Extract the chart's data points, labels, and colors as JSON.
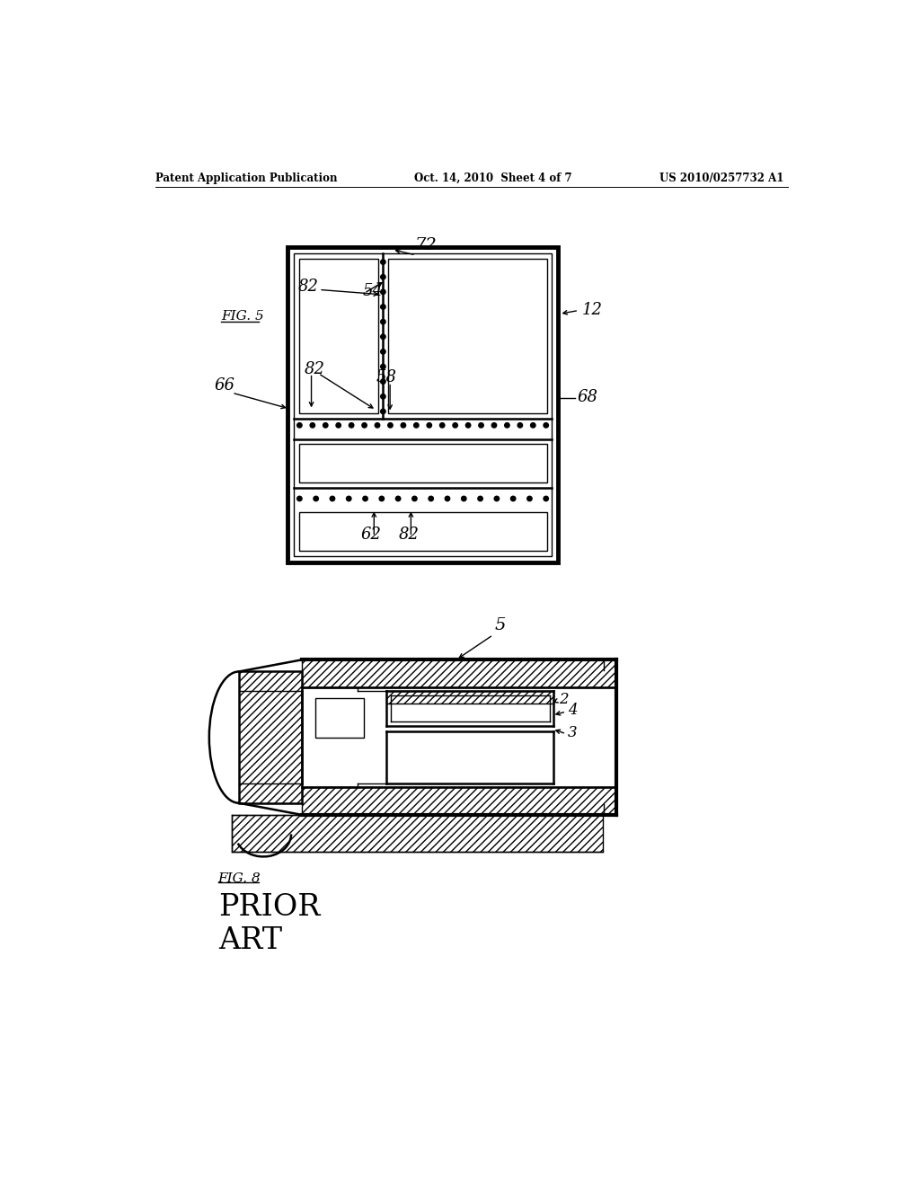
{
  "bg_color": "#ffffff",
  "header_left": "Patent Application Publication",
  "header_mid": "Oct. 14, 2010  Sheet 4 of 7",
  "header_right": "US 2010/0257732 A1",
  "fig5_label": "FIG. 5",
  "fig8_label": "FIG. 8",
  "prior_art_label": "PRIOR\nART",
  "lw_thin": 1.0,
  "lw_med": 1.8,
  "lw_thick": 3.0
}
